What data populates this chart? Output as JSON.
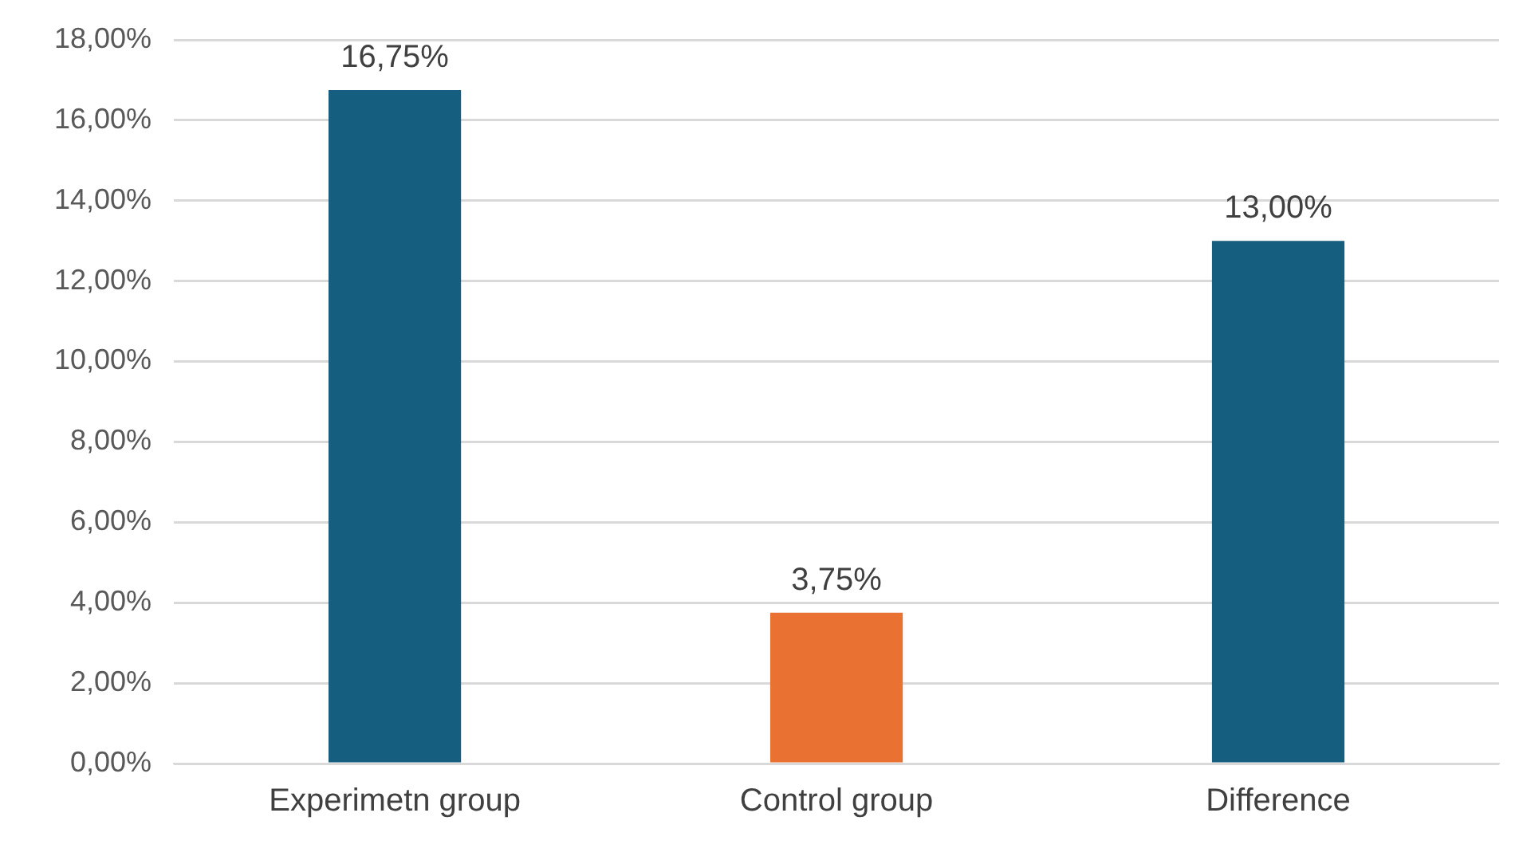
{
  "chart_data": {
    "type": "bar",
    "categories": [
      "Experimetn group",
      "Control group",
      "Difference"
    ],
    "values": [
      16.75,
      3.75,
      13
    ],
    "colors": [
      "#165e80",
      "#e97132",
      "#165e80"
    ],
    "value_labels": [
      "16,75%",
      "3,75%",
      "13,00%"
    ],
    "ylim": [
      0,
      18
    ],
    "yticks": [
      {
        "value": 0,
        "label": "0,00%"
      },
      {
        "value": 2,
        "label": "2,00%"
      },
      {
        "value": 4,
        "label": "4,00%"
      },
      {
        "value": 6,
        "label": "6,00%"
      },
      {
        "value": 8,
        "label": "8,00%"
      },
      {
        "value": 10,
        "label": "10,00%"
      },
      {
        "value": 12,
        "label": "12,00%"
      },
      {
        "value": 14,
        "label": "14,00%"
      },
      {
        "value": 16,
        "label": "16,00%"
      },
      {
        "value": 18,
        "label": "18,00%"
      }
    ],
    "grid": "y",
    "legend": false
  }
}
